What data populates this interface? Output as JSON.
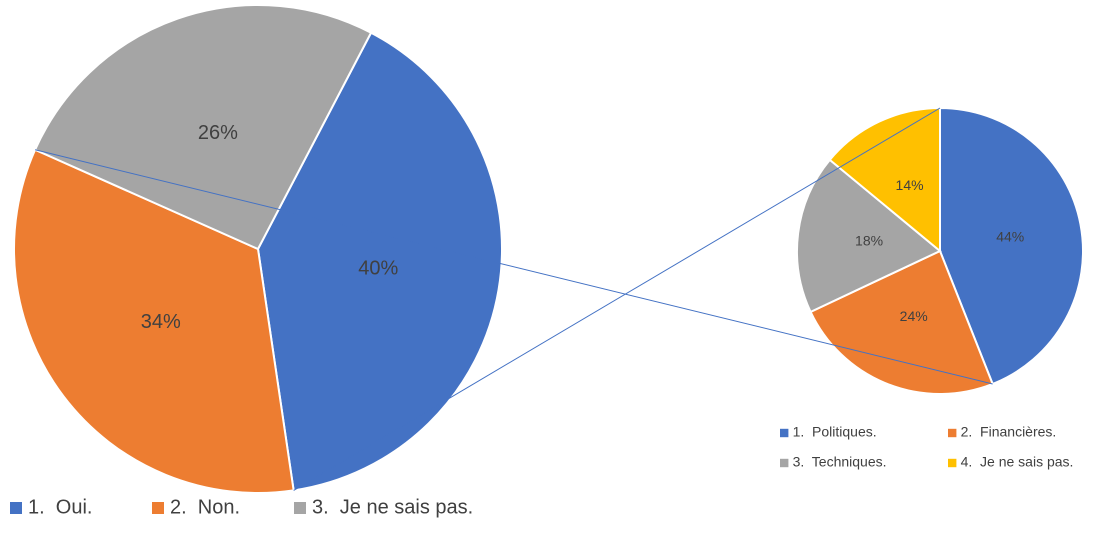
{
  "chart_data": [
    {
      "type": "pie",
      "categories": [
        "1.  Oui.",
        "2.  Non.",
        "3.  Je ne sais pas."
      ],
      "values": [
        40,
        34,
        26
      ],
      "value_labels": [
        "40%",
        "34%",
        "26%"
      ],
      "colors": [
        "#4472c4",
        "#ed7d31",
        "#a5a5a5"
      ]
    },
    {
      "type": "pie",
      "categories": [
        "1.  Politiques.",
        "2.  Financières.",
        "3.  Techniques.",
        "4.  Je ne sais pas."
      ],
      "values": [
        44,
        24,
        18,
        14
      ],
      "value_labels": [
        "44%",
        "24%",
        "18%",
        "14%"
      ],
      "colors": [
        "#4472c4",
        "#ed7d31",
        "#a5a5a5",
        "#ffc000"
      ]
    }
  ]
}
